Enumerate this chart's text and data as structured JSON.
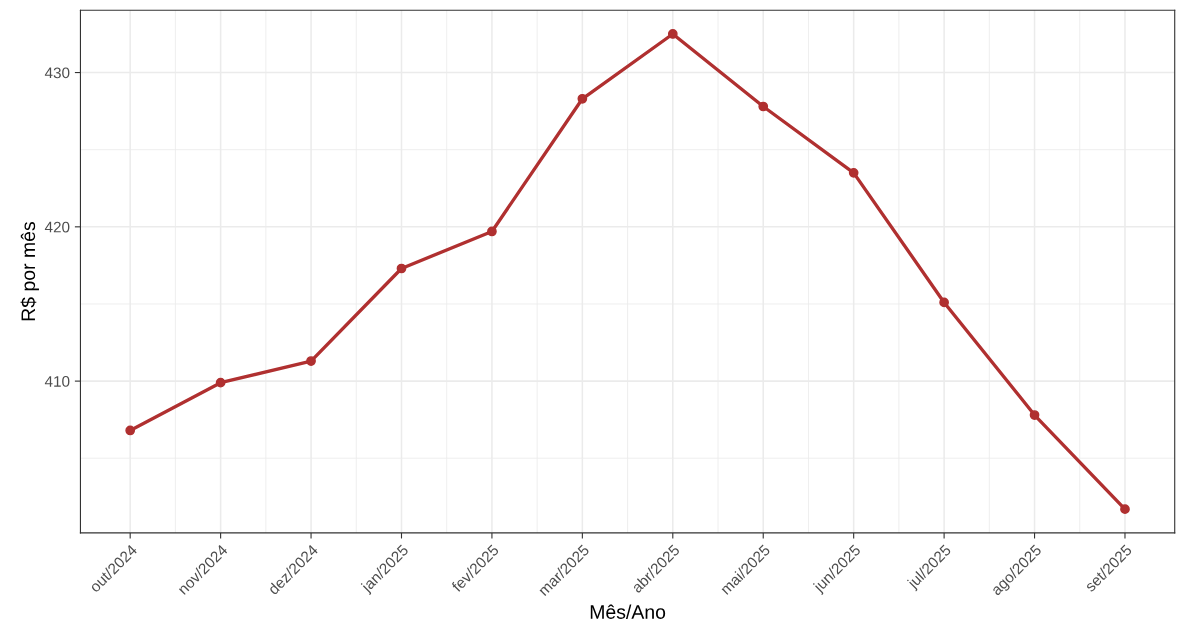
{
  "chart_data": {
    "type": "line",
    "xlabel": "Mês/Ano",
    "ylabel": "R$ por mês",
    "categories": [
      "out/2024",
      "nov/2024",
      "dez/2024",
      "jan/2025",
      "fev/2025",
      "mar/2025",
      "abr/2025",
      "mai/2025",
      "jun/2025",
      "jul/2025",
      "ago/2025",
      "set/2025"
    ],
    "series": [
      {
        "color": "#b03030",
        "values": [
          406.8,
          409.9,
          411.3,
          417.3,
          419.7,
          428.3,
          432.5,
          427.8,
          423.5,
          415.1,
          407.8,
          401.7
        ]
      }
    ],
    "ylim": [
      400.16,
      434.04
    ],
    "yticks": [
      410,
      420,
      430
    ],
    "grid": true,
    "marker": "circle",
    "line_style": "solid"
  }
}
